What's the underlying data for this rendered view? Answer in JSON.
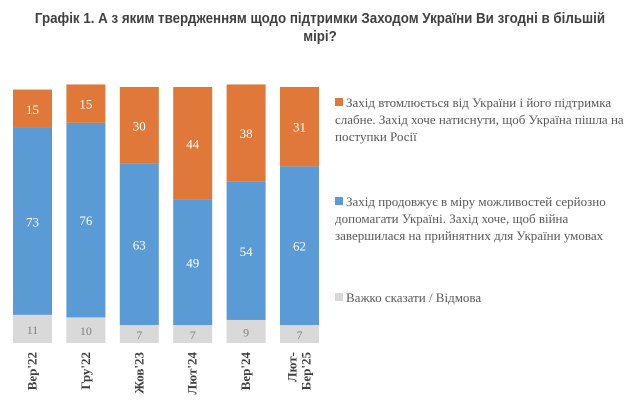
{
  "chart_data": {
    "type": "stacked-bar",
    "title": "Графік 1. А з яким твердженням щодо підтримки Заходом України Ви згодні в більшій мірі?",
    "categories": [
      "Вер'22",
      "Гру'22",
      "Жов'23",
      "Лют'24",
      "Вер'24",
      "Лют-Бер'25"
    ],
    "series": [
      {
        "name": "Важко сказати / Відмова",
        "color": "#D9D9D9",
        "values": [
          11,
          10,
          7,
          7,
          9,
          7
        ]
      },
      {
        "name": "Захід продовжує в міру можливостей серйозно допомагати Україні. Захід хоче, щоб війна завершилася на прийнятних для України умовах",
        "color": "#5B9BD5",
        "values": [
          73,
          76,
          63,
          49,
          54,
          62
        ]
      },
      {
        "name": "Захід втомлюється від України і його підтримка слабне. Захід хоче натиснути, щоб Україна пішла на поступки Росії",
        "color": "#E0783A",
        "values": [
          15,
          15,
          30,
          44,
          38,
          31
        ]
      }
    ],
    "ylim": [
      0,
      100
    ],
    "legend_position": "right"
  }
}
